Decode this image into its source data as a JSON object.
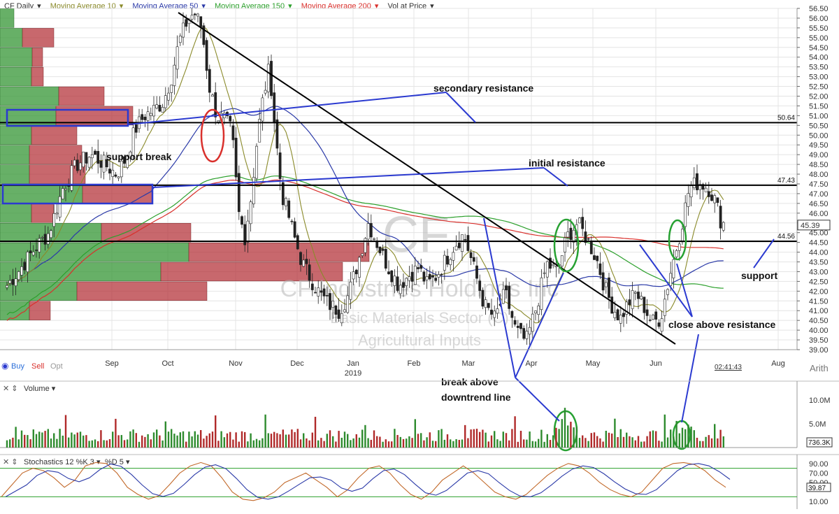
{
  "header": {
    "symbol": "CF",
    "period": "Daily",
    "indicators": [
      {
        "label": "Moving Average 10",
        "color": "#8a8a2a"
      },
      {
        "label": "Moving Average 50",
        "color": "#2b3aa8"
      },
      {
        "label": "Moving Average 150",
        "color": "#2ca02c"
      },
      {
        "label": "Moving Average 200",
        "color": "#d9302c"
      },
      {
        "label": "Vol at Price",
        "color": "#333333"
      }
    ]
  },
  "controls": {
    "buy": "Buy",
    "sell": "Sell",
    "opt": "Opt",
    "scale": "Arith",
    "timestamp": "02:41:43"
  },
  "price_axis": {
    "ticks": [
      "56.50",
      "56.00",
      "55.50",
      "55.00",
      "54.50",
      "54.00",
      "53.50",
      "53.00",
      "52.50",
      "52.00",
      "51.50",
      "51.00",
      "50.50",
      "50.00",
      "49.50",
      "49.00",
      "48.50",
      "48.00",
      "47.50",
      "47.00",
      "46.50",
      "46.00",
      "45.50",
      "45.00",
      "44.50",
      "44.00",
      "43.50",
      "43.00",
      "42.50",
      "42.00",
      "41.50",
      "41.00",
      "40.50",
      "40.00",
      "39.50",
      "39.00"
    ],
    "last_price": "45.39"
  },
  "time_axis": {
    "months": [
      "Sep",
      "Oct",
      "Nov",
      "Dec",
      "Jan",
      "Feb",
      "Mar",
      "Apr",
      "May",
      "Jun",
      "Aug"
    ],
    "year_label": "2019"
  },
  "watermark": {
    "symbol": "CF",
    "line1": "CF Industries Holdings Inc",
    "line2": "Basic Materials Sector (C)",
    "line3": "Agricultural Inputs"
  },
  "levels": [
    {
      "price": 50.64,
      "label": "50.64"
    },
    {
      "price": 47.43,
      "label": "47.43"
    },
    {
      "price": 44.56,
      "label": "44.56"
    }
  ],
  "annotations": {
    "secondary_resistance": "secondary resistance",
    "support_break": "support break",
    "initial_resistance": "initial resistance",
    "support": "support",
    "close_above_resistance": "close above resistance",
    "break_above_line1": "break above",
    "break_above_line2": "downtrend line"
  },
  "volume_panel": {
    "label": "Volume",
    "ticks": [
      "10.0M",
      "5.0M"
    ],
    "last": "736.3K"
  },
  "stoch_panel": {
    "label": "Stochastics 12 %K 3",
    "d_label": "%D 5",
    "ticks": [
      "90.00",
      "70.00",
      "50.00",
      "10.00"
    ],
    "last": "39.87"
  },
  "chart_data": {
    "type": "candlestick",
    "title": "CF Daily",
    "ylim": [
      39.0,
      56.5
    ],
    "x_range": [
      "Aug 2018",
      "Jul 2019"
    ],
    "price_path": [
      [
        "Aug",
        42.3
      ],
      [
        "Aug",
        43.2
      ],
      [
        "Aug",
        44.2
      ],
      [
        "Aug",
        45.0
      ],
      [
        "Aug",
        47.3
      ],
      [
        "Aug",
        48.5
      ],
      [
        "Aug",
        49.0
      ],
      [
        "Aug",
        48.5
      ],
      [
        "Sep",
        48.0
      ],
      [
        "Sep",
        48.8
      ],
      [
        "Sep",
        50.3
      ],
      [
        "Sep",
        51.0
      ],
      [
        "Sep",
        51.3
      ],
      [
        "Sep",
        51.7
      ],
      [
        "Oct",
        53.0
      ],
      [
        "Oct",
        54.8
      ],
      [
        "Oct",
        55.8
      ],
      [
        "Oct",
        56.3
      ],
      [
        "Oct",
        55.5
      ],
      [
        "Oct",
        52.5
      ],
      [
        "Oct",
        51.0
      ],
      [
        "Oct",
        50.8
      ],
      [
        "Oct",
        50.2
      ],
      [
        "Nov",
        46.0
      ],
      [
        "Nov",
        44.8
      ],
      [
        "Nov",
        46.8
      ],
      [
        "Nov",
        49.8
      ],
      [
        "Nov",
        52.0
      ],
      [
        "Nov",
        53.5
      ],
      [
        "Nov",
        50.0
      ],
      [
        "Nov",
        47.0
      ],
      [
        "Nov",
        46.0
      ],
      [
        "Nov",
        44.8
      ],
      [
        "Dec",
        43.5
      ],
      [
        "Dec",
        42.6
      ],
      [
        "Dec",
        41.8
      ],
      [
        "Dec",
        41.3
      ],
      [
        "Dec",
        41.0
      ],
      [
        "Dec",
        41.8
      ],
      [
        "Jan",
        43.5
      ],
      [
        "Jan",
        45.5
      ],
      [
        "Jan",
        44.3
      ],
      [
        "Jan",
        43.2
      ],
      [
        "Jan",
        42.3
      ],
      [
        "Jan",
        42.8
      ],
      [
        "Feb",
        43.2
      ],
      [
        "Feb",
        42.3
      ],
      [
        "Feb",
        42.8
      ],
      [
        "Feb",
        43.6
      ],
      [
        "Feb",
        44.4
      ],
      [
        "Feb",
        44.9
      ],
      [
        "Mar",
        43.2
      ],
      [
        "Mar",
        41.3
      ],
      [
        "Mar",
        40.6
      ],
      [
        "Mar",
        41.9
      ],
      [
        "Mar",
        40.0
      ],
      [
        "Mar",
        39.4
      ],
      [
        "Apr",
        41.2
      ],
      [
        "Apr",
        43.4
      ],
      [
        "Apr",
        43.0
      ],
      [
        "Apr",
        44.8
      ],
      [
        "Apr",
        45.5
      ],
      [
        "Apr",
        44.6
      ],
      [
        "May",
        43.6
      ],
      [
        "May",
        42.2
      ],
      [
        "May",
        41.2
      ],
      [
        "May",
        40.6
      ],
      [
        "May",
        41.4
      ],
      [
        "May",
        41.9
      ],
      [
        "May",
        41.2
      ],
      [
        "May",
        40.4
      ],
      [
        "Jun",
        40.6
      ],
      [
        "Jun",
        42.9
      ],
      [
        "Jun",
        44.9
      ],
      [
        "Jun",
        47.3
      ],
      [
        "Jun",
        47.6
      ],
      [
        "Jun",
        47.3
      ],
      [
        "Jul",
        46.6
      ],
      [
        "Jul",
        45.6
      ],
      [
        "Jul",
        45.39
      ]
    ],
    "volume_at_price": [
      {
        "price": 56.0,
        "up": 2.0,
        "down": 0.0
      },
      {
        "price": 55.0,
        "up": 3.2,
        "down": 4.5
      },
      {
        "price": 54.0,
        "up": 4.6,
        "down": 1.5
      },
      {
        "price": 53.0,
        "up": 4.5,
        "down": 1.7
      },
      {
        "price": 52.0,
        "up": 8.4,
        "down": 6.5
      },
      {
        "price": 51.0,
        "up": 8.0,
        "down": 11.0
      },
      {
        "price": 50.0,
        "up": 4.5,
        "down": 6.5
      },
      {
        "price": 49.0,
        "up": 4.2,
        "down": 7.5
      },
      {
        "price": 48.0,
        "up": 4.2,
        "down": 8.0
      },
      {
        "price": 47.0,
        "up": 11.8,
        "down": 10.0
      },
      {
        "price": 46.0,
        "up": 4.5,
        "down": 3.2
      },
      {
        "price": 45.0,
        "up": 14.5,
        "down": 12.8
      },
      {
        "price": 44.0,
        "up": 27.0,
        "down": 25.8
      },
      {
        "price": 43.0,
        "up": 23.0,
        "down": 26.0
      },
      {
        "price": 42.0,
        "up": 11.0,
        "down": 18.6
      },
      {
        "price": 41.0,
        "up": 4.2,
        "down": 3.0
      }
    ],
    "stochastics_k_path": [
      20,
      45,
      70,
      80,
      75,
      60,
      40,
      55,
      85,
      92,
      90,
      70,
      40,
      25,
      15,
      22,
      45,
      70,
      85,
      92,
      85,
      60,
      30,
      15,
      12,
      18,
      30,
      50,
      60,
      70,
      55,
      40,
      20,
      35,
      60,
      80,
      85,
      70,
      45,
      25,
      15,
      30,
      55,
      70,
      85,
      70,
      50,
      30,
      20,
      15,
      25,
      45,
      65,
      80,
      90,
      85,
      70,
      50,
      35,
      25,
      20,
      30,
      55,
      80,
      90,
      92,
      88,
      75,
      55,
      40
    ]
  }
}
